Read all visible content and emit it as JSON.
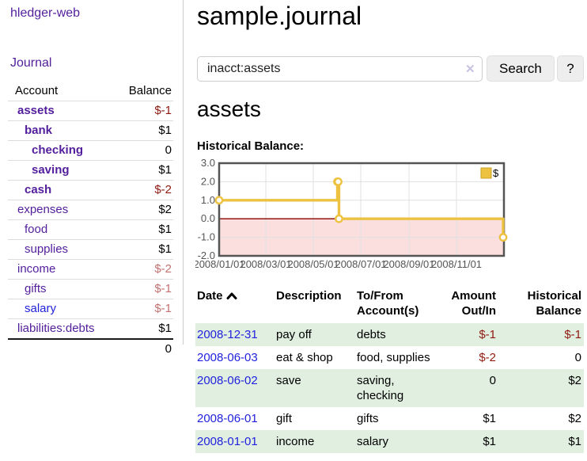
{
  "app": {
    "brand": "hledger-web"
  },
  "nav": {
    "journal": "Journal"
  },
  "sidebar": {
    "headers": {
      "account": "Account",
      "balance": "Balance"
    },
    "accounts": [
      {
        "name": "assets",
        "balance": "$-1"
      },
      {
        "name": "bank",
        "balance": "$1"
      },
      {
        "name": "checking",
        "balance": "0"
      },
      {
        "name": "saving",
        "balance": "$1"
      },
      {
        "name": "cash",
        "balance": "$-2"
      },
      {
        "name": "expenses",
        "balance": "$2"
      },
      {
        "name": "food",
        "balance": "$1"
      },
      {
        "name": "supplies",
        "balance": "$1"
      },
      {
        "name": "income",
        "balance": "$-2"
      },
      {
        "name": "gifts",
        "balance": "$-1"
      },
      {
        "name": "salary",
        "balance": "$-1"
      },
      {
        "name": "liabilities:debts",
        "balance": "$1"
      }
    ],
    "total": "0"
  },
  "main": {
    "title": "sample.journal",
    "search": {
      "value": "inacct:assets",
      "clear_icon": "✕",
      "button_label": "Search",
      "help_label": "?"
    },
    "account_heading": "assets",
    "chart_title": "Historical Balance:"
  },
  "chart_data": {
    "type": "line",
    "title": "Historical Balance:",
    "step": true,
    "series": [
      {
        "name": "$",
        "points": [
          {
            "date": "2008-01-01",
            "day": 0,
            "value": 1
          },
          {
            "date": "2008-06-01",
            "day": 152,
            "value": 2
          },
          {
            "date": "2008-06-02",
            "day": 153,
            "value": 2
          },
          {
            "date": "2008-06-03",
            "day": 154,
            "value": 0
          },
          {
            "date": "2008-12-31",
            "day": 365,
            "value": -1
          }
        ]
      }
    ],
    "x_ticks": [
      {
        "label": "2008/01/01",
        "day": 0
      },
      {
        "label": "2008/03/01",
        "day": 60
      },
      {
        "label": "2008/05/01",
        "day": 121
      },
      {
        "label": "2008/07/01",
        "day": 182
      },
      {
        "label": "2008/09/01",
        "day": 244
      },
      {
        "label": "2008/11/01",
        "day": 305
      }
    ],
    "y_ticks": [
      "3.0",
      "2.0",
      "1.0",
      "0.0",
      "-1.0",
      "-2.0"
    ],
    "ylim": [
      -2,
      3
    ],
    "xlim_days": [
      0,
      366
    ],
    "grid": true,
    "legend": {
      "label": "$",
      "position": "top-right"
    },
    "colors": {
      "line": "#edc240",
      "marker_fill": "#ffffff",
      "legend_border": "#c9a227",
      "negative_region": "#fbdfdf",
      "zero_line": "#8b0000",
      "grid": "#e0e0e0",
      "border": "#545454",
      "tick_text": "#545454"
    }
  },
  "register": {
    "headers": {
      "date": "Date",
      "description": "Description",
      "accounts": "To/From Account(s)",
      "amount": "Amount Out/In",
      "balance": "Historical Balance"
    },
    "rows": [
      {
        "date": "2008-12-31",
        "description": "pay off",
        "accounts": "debts",
        "amount": "$-1",
        "balance": "$-1"
      },
      {
        "date": "2008-06-03",
        "description": "eat & shop",
        "accounts": "food, supplies",
        "amount": "$-2",
        "balance": "0"
      },
      {
        "date": "2008-06-02",
        "description": "save",
        "accounts": "saving, checking",
        "amount": "0",
        "balance": "$2"
      },
      {
        "date": "2008-06-01",
        "description": "gift",
        "accounts": "gifts",
        "amount": "$1",
        "balance": "$2"
      },
      {
        "date": "2008-01-01",
        "description": "income",
        "accounts": "salary",
        "amount": "$1",
        "balance": "$1"
      }
    ]
  }
}
